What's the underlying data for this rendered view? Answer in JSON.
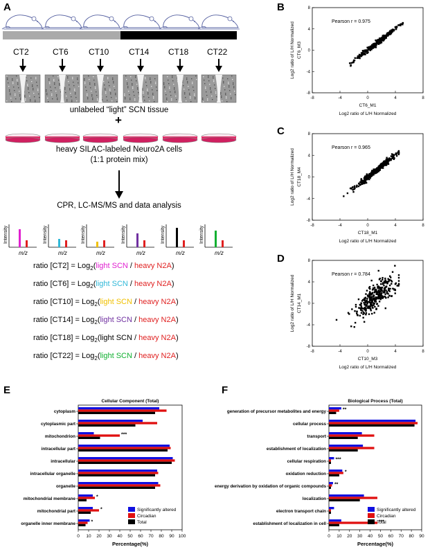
{
  "panel_a": {
    "letter": "A",
    "timepoints": [
      "CT2",
      "CT6",
      "CT10",
      "CT14",
      "CT18",
      "CT22"
    ],
    "caption_light": "unlabeled “light” SCN tissue",
    "plus": "+",
    "caption_heavy": "heavy SILAC-labeled Neuro2A cells",
    "caption_mix": "(1:1 protein mix)",
    "caption_analysis": "CPR, LC-MS/MS and data analysis",
    "spectrum_ylabel": "Intensity",
    "spectrum_xlabel": "m/z",
    "spectrum_colors": [
      "#e020d0",
      "#30b8d8",
      "#f0c000",
      "#7030a0",
      "#000000",
      "#10b030"
    ],
    "heavy_color": "#e02020",
    "ratios": [
      {
        "prefix": "ratio [CT2] = Log",
        "sub": "2",
        "open": "(",
        "light": "light SCN",
        "light_color": "#e020d0",
        "sep": " / ",
        "heavy": "heavy N2A",
        "close": ")"
      },
      {
        "prefix": "ratio [CT6] = Log",
        "sub": "2",
        "open": "(",
        "light": "light SCN",
        "light_color": "#30b8d8",
        "sep": " / ",
        "heavy": "heavy N2A",
        "close": ")"
      },
      {
        "prefix": "ratio [CT10] = Log",
        "sub": "2",
        "open": "(",
        "light": "light SCN",
        "light_color": "#f0c000",
        "sep": " / ",
        "heavy": "heavy N2A",
        "close": ")"
      },
      {
        "prefix": "ratio [CT14] = Log",
        "sub": "2",
        "open": "(",
        "light": "light SCN",
        "light_color": "#7030a0",
        "sep": " / ",
        "heavy": "heavy N2A",
        "close": ")"
      },
      {
        "prefix": "ratio [CT18] = Log",
        "sub": "2",
        "open": "(",
        "light": "light SCN",
        "light_color": "#000000",
        "sep": " / ",
        "heavy": "heavy N2A",
        "close": ")"
      },
      {
        "prefix": "ratio [CT22] = Log",
        "sub": "2",
        "open": "(",
        "light": "light SCN",
        "light_color": "#10b030",
        "sep": " / ",
        "heavy": "heavy N2A",
        "close": ")"
      }
    ]
  },
  "chart_data": [
    {
      "panel": "B",
      "type": "scatter",
      "annotation": "Pearson r = 0.975",
      "xlabel_1": "CT6_M1",
      "xlabel_2": "Log2 ratio of L/H Normalized",
      "ylabel_1": "Log2 ratio of L/H Normalized",
      "ylabel_2": "CT6_M3",
      "xlim": [
        -8,
        8
      ],
      "ylim": [
        -8,
        8
      ],
      "xticks": [
        "-8",
        "-4",
        "0",
        "4",
        "8"
      ],
      "yticks": [
        "-8",
        "-4",
        "0",
        "4",
        "8"
      ],
      "r": 0.975,
      "x_range": [
        -4.5,
        5.5
      ]
    },
    {
      "panel": "C",
      "type": "scatter",
      "annotation": "Pearson r = 0.965",
      "xlabel_1": "CT18_M1",
      "xlabel_2": "Log2 ratio of L/H Normalized",
      "ylabel_1": "Log2 ratio of L/H Normalized",
      "ylabel_2": "CT18_M4",
      "xlim": [
        -8,
        8
      ],
      "ylim": [
        -8,
        8
      ],
      "xticks": [
        "-8",
        "-4",
        "0",
        "4",
        "8"
      ],
      "yticks": [
        "-8",
        "-4",
        "0",
        "4",
        "8"
      ],
      "r": 0.965,
      "x_range": [
        -4.5,
        4.5
      ]
    },
    {
      "panel": "D",
      "type": "scatter",
      "annotation": "Pearson r = 0.784",
      "xlabel_1": "CT10_M3",
      "xlabel_2": "Log2 ratio of L/H Normalized",
      "ylabel_1": "Log2 ratio of L/H Normalized",
      "ylabel_2": "CT14_M1",
      "xlim": [
        -8,
        8
      ],
      "ylim": [
        -8,
        8
      ],
      "xticks": [
        "-8",
        "-4",
        "0",
        "4",
        "8"
      ],
      "yticks": [
        "-8",
        "-4",
        "0",
        "4",
        "8"
      ],
      "r": 0.784,
      "x_range": [
        -4.5,
        4.5
      ]
    },
    {
      "panel": "E",
      "type": "bar",
      "orientation": "horizontal",
      "title": "Cellular Component (Total)",
      "xlabel": "Percentage(%)",
      "xlim": [
        0,
        100
      ],
      "xticks": [
        "0",
        "10",
        "20",
        "30",
        "40",
        "50",
        "60",
        "70",
        "80",
        "90",
        "100"
      ],
      "categories": [
        "cytoplasm",
        "cytoplasmic part",
        "mitochondrion",
        "intracellular part",
        "intracellular",
        "intracellular organelle",
        "organelle",
        "mitochondrial membrane",
        "mitochondrial part",
        "organelle inner membrane"
      ],
      "series": [
        {
          "name": "Significantly altered",
          "color": "#1010e0",
          "values": [
            78,
            62,
            15,
            88,
            91,
            76,
            77,
            14,
            14,
            11
          ]
        },
        {
          "name": "Circadian",
          "color": "#e01010",
          "values": [
            85,
            76,
            40,
            89,
            93,
            77,
            79,
            16,
            20,
            9
          ]
        },
        {
          "name": "Total",
          "color": "#000000",
          "values": [
            74,
            55,
            21,
            86,
            90,
            74,
            74,
            8,
            12,
            7
          ]
        }
      ],
      "stars": [
        "",
        "",
        "***",
        "",
        "",
        "",
        "",
        "*",
        "*",
        "*"
      ],
      "legend_position": "bottom-right"
    },
    {
      "panel": "F",
      "type": "bar",
      "orientation": "horizontal",
      "title": "Biological Process (Total)",
      "xlabel": "Percentage(%)",
      "xlim": [
        0,
        90
      ],
      "xticks": [
        "0",
        "10",
        "20",
        "30",
        "40",
        "50",
        "60",
        "70",
        "80",
        "90"
      ],
      "categories": [
        "generation of precursor metabolites and energy",
        "cellular process",
        "transport",
        "establishment of localization",
        "cellular respiration",
        "oxidation reduction",
        "energy derivation by oxidation of organic compounds",
        "localization",
        "electron transport chain",
        "establishment of localization in cell"
      ],
      "series": [
        {
          "name": "Significantly altered",
          "color": "#1010e0",
          "values": [
            12,
            84,
            32,
            33,
            5,
            13,
            4,
            34,
            5,
            12
          ]
        },
        {
          "name": "Circadian",
          "color": "#e01010",
          "values": [
            10,
            86,
            44,
            44,
            2,
            14,
            3,
            47,
            2,
            47
          ]
        },
        {
          "name": "Total",
          "color": "#000000",
          "values": [
            7,
            83,
            28,
            28,
            2,
            10,
            2,
            30,
            2,
            10
          ]
        }
      ],
      "stars": [
        "**",
        "",
        "",
        "",
        "***",
        "*",
        "**",
        "",
        "",
        "***"
      ],
      "legend_position": "bottom-right"
    }
  ]
}
